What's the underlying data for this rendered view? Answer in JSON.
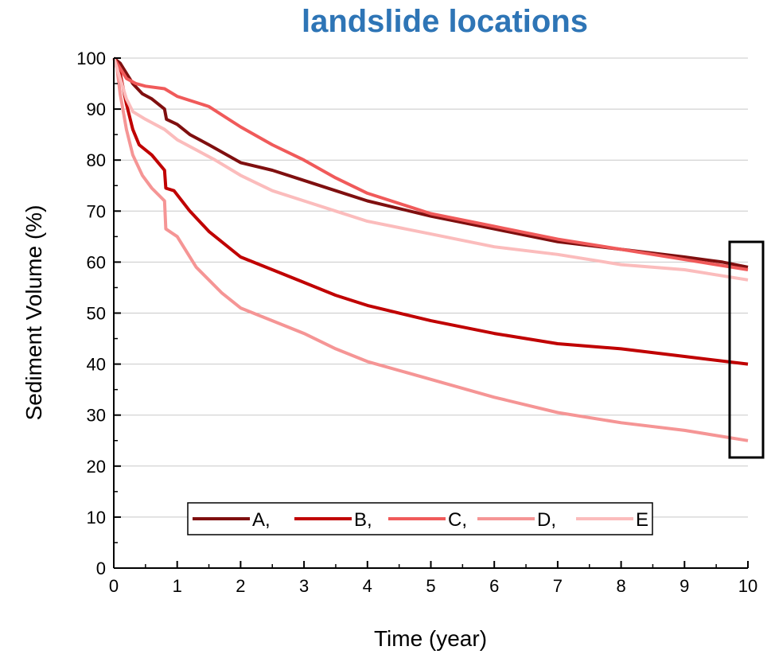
{
  "chart_data": {
    "type": "line",
    "title": "landslide locations",
    "xlabel": "Time (year)",
    "ylabel": "Sediment Volume (%)",
    "xlim": [
      0,
      10
    ],
    "ylim": [
      0,
      100
    ],
    "xticks": [
      0,
      1,
      2,
      3,
      4,
      5,
      6,
      7,
      8,
      9,
      10
    ],
    "yticks": [
      0,
      10,
      20,
      30,
      40,
      50,
      60,
      70,
      80,
      90,
      100
    ],
    "grid": "horizontal",
    "legend_position": "bottom-center",
    "colors": {
      "title": "#2e75b6",
      "grid": "#c8c8c8"
    },
    "series": [
      {
        "name": "A,",
        "legend_label": "A,",
        "color": "#7f0f0f",
        "x": [
          0,
          0.1,
          0.2,
          0.3,
          0.45,
          0.6,
          0.8,
          0.83,
          1.0,
          1.2,
          1.5,
          2.0,
          2.5,
          3.0,
          3.5,
          4.0,
          5.0,
          6.0,
          7.0,
          8.0,
          9.0,
          9.6,
          10.0
        ],
        "y": [
          100,
          99,
          97,
          95,
          93,
          92,
          90,
          88,
          87,
          85,
          83,
          79.5,
          78,
          76,
          74,
          72,
          69,
          66.5,
          64,
          62.5,
          61,
          60,
          59
        ]
      },
      {
        "name": "B,",
        "legend_label": "B,",
        "color": "#c00000",
        "x": [
          0,
          0.1,
          0.2,
          0.3,
          0.4,
          0.6,
          0.8,
          0.82,
          0.95,
          1.2,
          1.5,
          2.0,
          2.5,
          3.0,
          3.5,
          4.0,
          5.0,
          6.0,
          7.0,
          8.0,
          9.0,
          10.0
        ],
        "y": [
          100,
          97,
          91,
          86,
          83,
          81,
          78,
          74.5,
          74,
          70,
          66,
          61,
          58.5,
          56,
          53.5,
          51.5,
          48.5,
          46,
          44,
          43,
          41.5,
          40
        ]
      },
      {
        "name": "C,",
        "legend_label": "C,",
        "color": "#f05a5a",
        "x": [
          0,
          0.1,
          0.2,
          0.35,
          0.5,
          0.8,
          1.0,
          1.5,
          2.0,
          2.5,
          3.0,
          3.5,
          4.0,
          5.0,
          6.0,
          7.0,
          8.0,
          9.0,
          10.0
        ],
        "y": [
          100,
          98,
          96,
          95,
          94.5,
          94,
          92.5,
          90.5,
          86.5,
          83,
          80,
          76.5,
          73.5,
          69.5,
          67,
          64.5,
          62.5,
          60.5,
          58.5
        ]
      },
      {
        "name": "D,",
        "legend_label": "D,",
        "color": "#f59595",
        "x": [
          0,
          0.05,
          0.1,
          0.2,
          0.3,
          0.45,
          0.6,
          0.8,
          0.82,
          1.0,
          1.3,
          1.7,
          2.0,
          2.5,
          3.0,
          3.5,
          4.0,
          5.0,
          6.0,
          7.0,
          8.0,
          9.0,
          10.0
        ],
        "y": [
          100,
          98,
          93,
          86,
          81,
          77,
          74.5,
          72,
          66.5,
          65,
          59,
          54,
          51,
          48.5,
          46,
          43,
          40.5,
          37,
          33.5,
          30.5,
          28.5,
          27,
          25
        ]
      },
      {
        "name": "E",
        "legend_label": "E",
        "color": "#fbbcbc",
        "x": [
          0,
          0.1,
          0.2,
          0.3,
          0.5,
          0.8,
          1.0,
          1.3,
          1.6,
          2.0,
          2.5,
          3.0,
          3.5,
          4.0,
          5.0,
          6.0,
          7.0,
          8.0,
          9.0,
          10.0
        ],
        "y": [
          100,
          96,
          92,
          89.5,
          88,
          86,
          84,
          82,
          80,
          77,
          74,
          72,
          70,
          68,
          65.5,
          63,
          61.5,
          59.5,
          58.5,
          56.5
        ]
      }
    ]
  }
}
